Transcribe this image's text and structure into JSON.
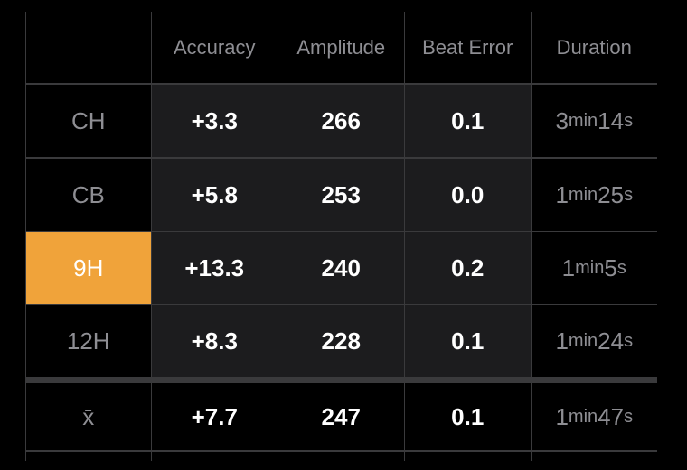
{
  "table": {
    "header": [
      "Accuracy",
      "Amplitude",
      "Beat Error",
      "Duration"
    ],
    "rows": [
      {
        "label": "CH",
        "values": [
          "+3.3",
          "266",
          "0.1"
        ],
        "duration": [
          "3",
          "min",
          "14",
          "s"
        ]
      },
      {
        "label": "CB",
        "values": [
          "+5.8",
          "253",
          "0.0"
        ],
        "duration": [
          "1",
          "min",
          "25",
          "s"
        ]
      },
      {
        "label": "9H",
        "values": [
          "+13.3",
          "240",
          "0.2"
        ],
        "duration": [
          "1",
          "min",
          "5",
          "s"
        ],
        "label_background": "#f0a33a",
        "label_color": "#ffffff"
      },
      {
        "label": "12H",
        "values": [
          "+8.3",
          "228",
          "0.1"
        ],
        "duration": [
          "1",
          "min",
          "24",
          "s"
        ]
      }
    ],
    "mean": {
      "label": "x̄",
      "values": [
        "+7.7",
        "247",
        "0.1"
      ],
      "duration": [
        "1",
        "min",
        "47",
        "s"
      ]
    }
  }
}
